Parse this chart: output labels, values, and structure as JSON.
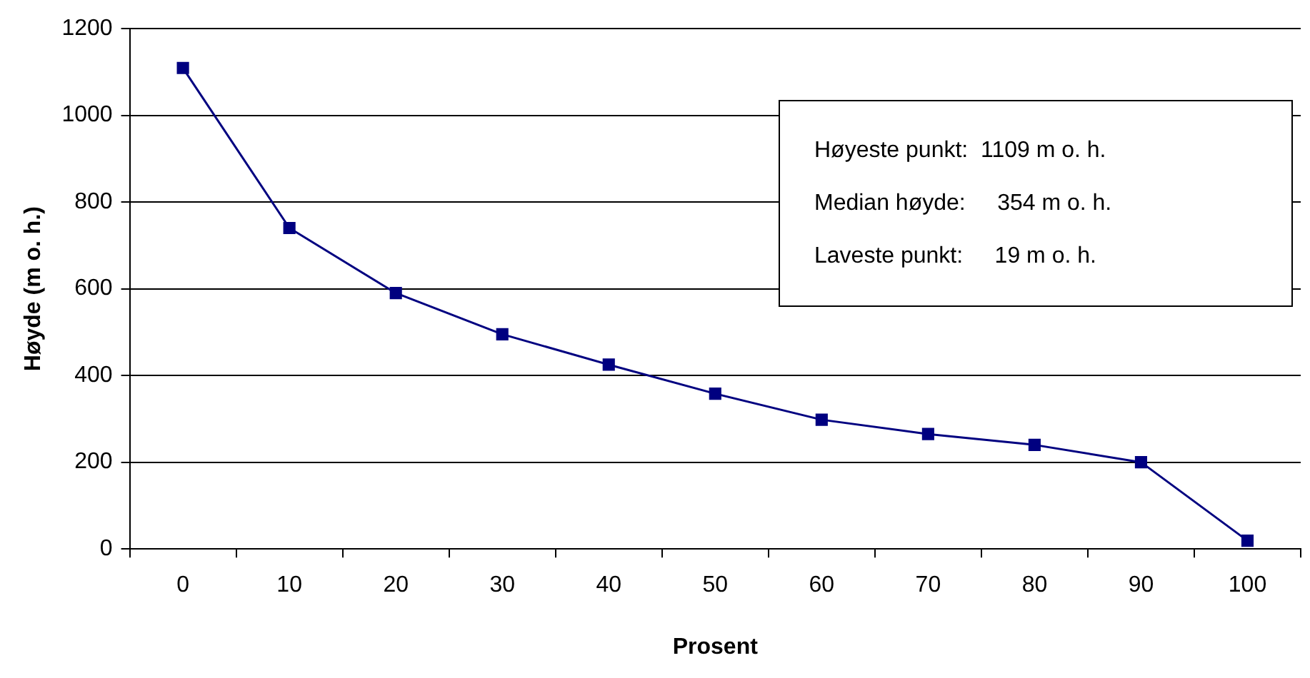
{
  "chart_data": {
    "type": "line",
    "xlabel": "Prosent",
    "ylabel": "Høyde (m o. h.)",
    "categories": [
      "0",
      "10",
      "20",
      "30",
      "40",
      "50",
      "60",
      "70",
      "80",
      "90",
      "100"
    ],
    "series": [
      {
        "color": "#000080",
        "values": [
          1109,
          740,
          590,
          495,
          425,
          358,
          298,
          265,
          240,
          200,
          19
        ]
      }
    ],
    "ylim": [
      0,
      1200
    ],
    "yticks": [
      0,
      200,
      400,
      600,
      800,
      1000,
      1200
    ],
    "grid": "y",
    "legend": false,
    "marker": "square",
    "line_style": "solid",
    "annotations": [
      "Høyeste punkt:  1109 m o. h.",
      "Median høyde:     354 m o. h.",
      "Laveste punkt:     19 m o. h."
    ]
  }
}
